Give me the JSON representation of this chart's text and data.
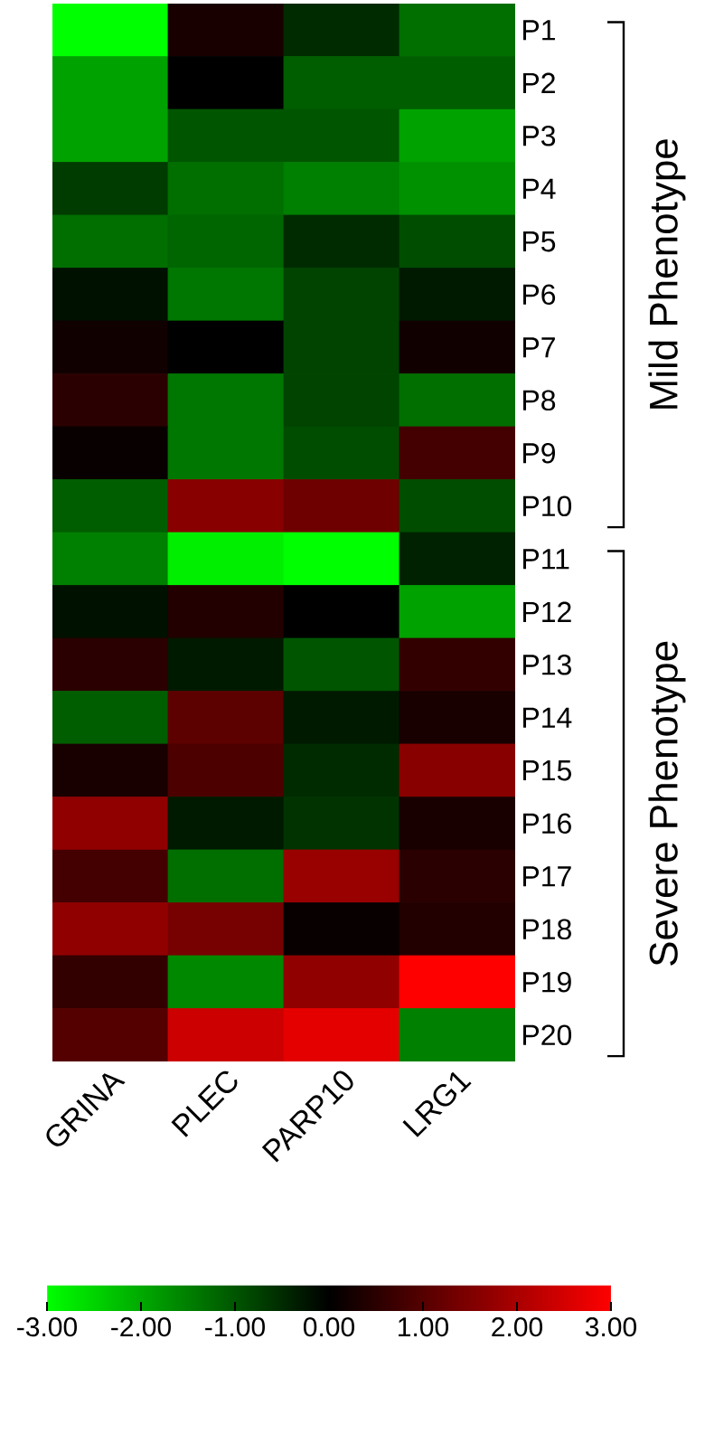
{
  "chart_data": {
    "type": "heatmap",
    "categories": [
      "GRINA",
      "PLEC",
      "PARP10",
      "LRG1"
    ],
    "y_categories": [
      "P1",
      "P2",
      "P3",
      "P4",
      "P5",
      "P6",
      "P7",
      "P8",
      "P9",
      "P10",
      "P11",
      "P12",
      "P13",
      "P14",
      "P15",
      "P16",
      "P17",
      "P18",
      "P19",
      "P20"
    ],
    "cells": [
      [
        -3.0,
        0.3,
        -0.5,
        -1.3
      ],
      [
        -1.9,
        0.0,
        -1.1,
        -1.1
      ],
      [
        -1.9,
        -1.0,
        -1.0,
        -1.9
      ],
      [
        -0.7,
        -1.3,
        -1.5,
        -1.7
      ],
      [
        -1.3,
        -1.2,
        -0.5,
        -0.9
      ],
      [
        -0.2,
        -1.4,
        -0.8,
        -0.3
      ],
      [
        0.2,
        0.0,
        -0.8,
        0.2
      ],
      [
        0.5,
        -1.4,
        -0.8,
        -1.3
      ],
      [
        0.1,
        -1.4,
        -0.9,
        0.8
      ],
      [
        -1.1,
        1.6,
        1.3,
        -0.9
      ],
      [
        -1.5,
        -2.8,
        -3.0,
        -0.4
      ],
      [
        -0.2,
        0.4,
        0.0,
        -1.9
      ],
      [
        0.5,
        -0.3,
        -1.0,
        0.6
      ],
      [
        -1.1,
        1.1,
        -0.3,
        0.3
      ],
      [
        0.3,
        0.9,
        -0.5,
        1.6
      ],
      [
        1.7,
        -0.3,
        -0.6,
        0.3
      ],
      [
        0.8,
        -1.3,
        1.8,
        0.5
      ],
      [
        1.7,
        1.4,
        0.1,
        0.4
      ],
      [
        0.6,
        -1.6,
        1.7,
        3.0
      ],
      [
        1.0,
        2.4,
        2.7,
        -1.5
      ]
    ],
    "clim": [
      -3,
      3
    ],
    "cticks": [
      {
        "value": -3,
        "label": "-3.00"
      },
      {
        "value": -2,
        "label": "-2.00"
      },
      {
        "value": -1,
        "label": "-1.00"
      },
      {
        "value": 0,
        "label": "0.00"
      },
      {
        "value": 1,
        "label": "1.00"
      },
      {
        "value": 2,
        "label": "2.00"
      },
      {
        "value": 3,
        "label": "3.00"
      }
    ],
    "annotations": [
      "Mild Phenotype",
      "Severe Phenotype"
    ]
  }
}
